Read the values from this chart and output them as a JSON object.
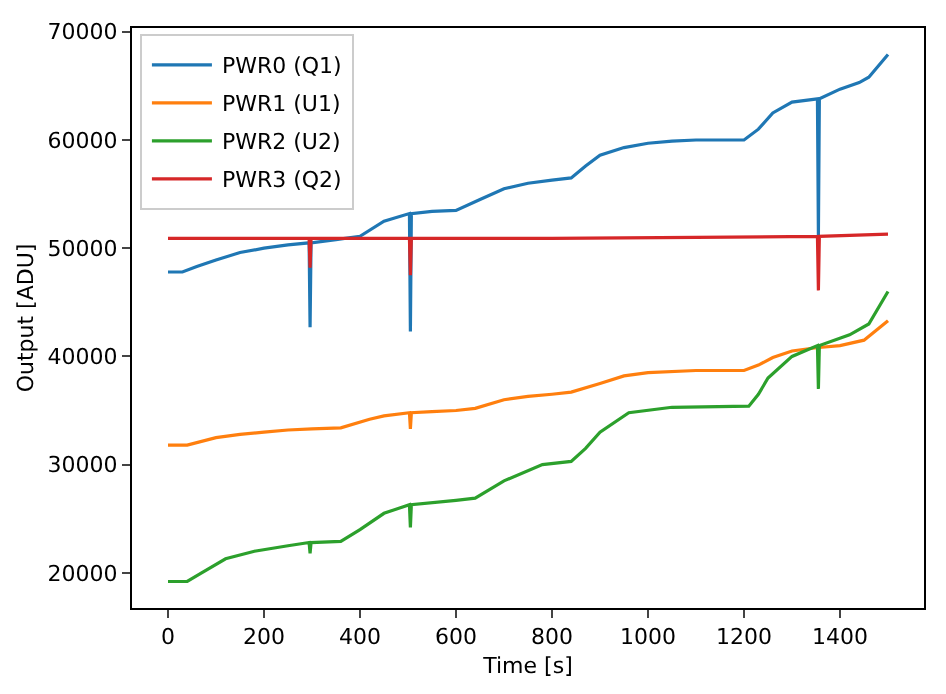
{
  "chart_data": {
    "type": "line",
    "xlabel": "Time [s]",
    "ylabel": "Output [ADU]",
    "xlim": [
      -75,
      1575
    ],
    "ylim": [
      16750,
      70350
    ],
    "xticks": [
      0,
      200,
      400,
      600,
      800,
      1000,
      1200,
      1400
    ],
    "yticks": [
      20000,
      30000,
      40000,
      50000,
      60000,
      70000
    ],
    "legend": "top left",
    "marker": "none",
    "line_style": "solid",
    "series": [
      {
        "name": "PWR0 (Q1)",
        "color": "#1f77b4",
        "x": [
          0,
          30,
          60,
          100,
          150,
          200,
          250,
          294,
          296,
          298,
          350,
          400,
          450,
          503,
          505,
          507,
          550,
          600,
          650,
          700,
          750,
          800,
          840,
          870,
          900,
          950,
          1000,
          1050,
          1100,
          1150,
          1200,
          1230,
          1260,
          1300,
          1353,
          1355,
          1357,
          1400,
          1440,
          1460,
          1500
        ],
        "values": [
          47800,
          47800,
          48300,
          48900,
          49600,
          50000,
          50300,
          50500,
          42700,
          50500,
          50800,
          51100,
          52500,
          53200,
          42300,
          53200,
          53400,
          53500,
          54500,
          55500,
          56000,
          56300,
          56500,
          57600,
          58600,
          59300,
          59700,
          59900,
          60000,
          60000,
          60000,
          61000,
          62500,
          63500,
          63800,
          51200,
          63800,
          64700,
          65300,
          65800,
          67900
        ]
      },
      {
        "name": "PWR1 (U1)",
        "color": "#ff7f0e",
        "x": [
          0,
          40,
          100,
          150,
          200,
          250,
          300,
          360,
          420,
          450,
          503,
          505,
          507,
          550,
          600,
          640,
          700,
          750,
          800,
          840,
          900,
          950,
          1000,
          1100,
          1200,
          1230,
          1260,
          1300,
          1350,
          1400,
          1450,
          1500
        ],
        "values": [
          31800,
          31800,
          32500,
          32800,
          33000,
          33200,
          33300,
          33400,
          34200,
          34500,
          34800,
          33300,
          34800,
          34900,
          35000,
          35200,
          36000,
          36300,
          36500,
          36700,
          37500,
          38200,
          38500,
          38700,
          38700,
          39200,
          39900,
          40500,
          40800,
          41000,
          41500,
          43300
        ]
      },
      {
        "name": "PWR2 (U2)",
        "color": "#2ca02c",
        "x": [
          0,
          40,
          70,
          120,
          180,
          250,
          294,
          296,
          298,
          360,
          400,
          450,
          503,
          505,
          507,
          600,
          640,
          700,
          780,
          840,
          870,
          900,
          960,
          1050,
          1210,
          1230,
          1250,
          1300,
          1353,
          1355,
          1357,
          1420,
          1460,
          1500
        ],
        "values": [
          19200,
          19200,
          20000,
          21300,
          22000,
          22500,
          22800,
          21800,
          22800,
          22900,
          24000,
          25500,
          26300,
          24200,
          26300,
          26700,
          26900,
          28500,
          30000,
          30300,
          31500,
          33000,
          34800,
          35300,
          35400,
          36500,
          38000,
          40000,
          41000,
          37000,
          41000,
          42000,
          43000,
          46000
        ]
      },
      {
        "name": "PWR3 (Q2)",
        "color": "#d62728",
        "x": [
          0,
          294,
          296,
          298,
          503,
          505,
          507,
          800,
          1100,
          1353,
          1355,
          1357,
          1500
        ],
        "values": [
          50900,
          50900,
          48200,
          50900,
          50900,
          47500,
          50900,
          50900,
          51000,
          51100,
          46100,
          51100,
          51300
        ]
      }
    ]
  }
}
